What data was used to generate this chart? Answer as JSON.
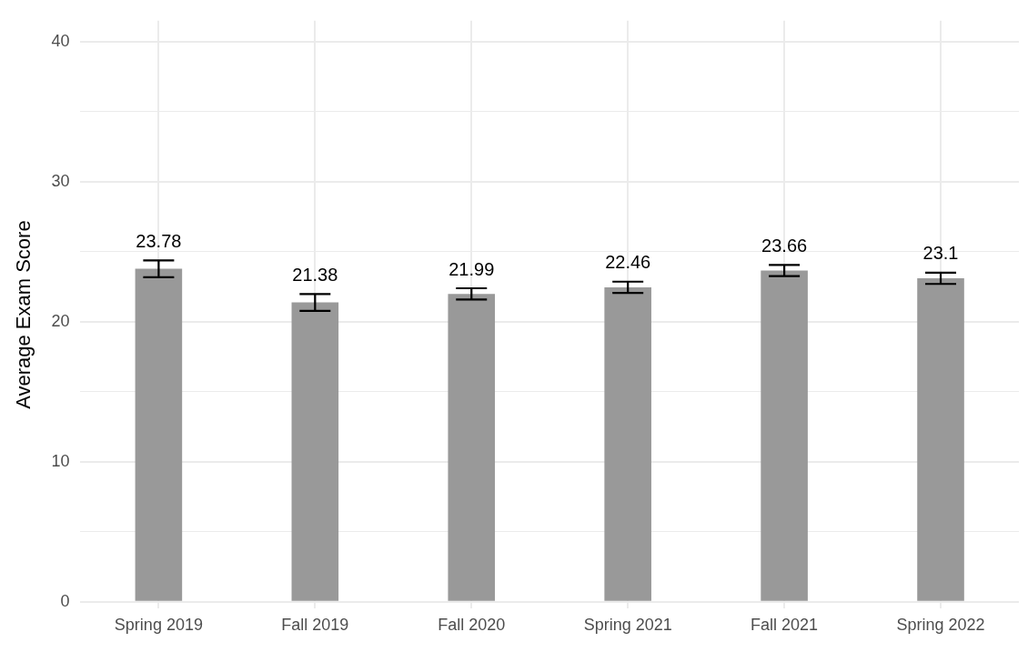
{
  "chart_data": {
    "type": "bar",
    "ylabel": "Average Exam Score",
    "categories": [
      "Spring 2019",
      "Fall 2019",
      "Fall 2020",
      "Spring 2021",
      "Fall 2021",
      "Spring 2022"
    ],
    "values": [
      23.78,
      21.38,
      21.99,
      22.46,
      23.66,
      23.1
    ],
    "errors": [
      0.6,
      0.6,
      0.4,
      0.4,
      0.4,
      0.4
    ],
    "color": "#999999",
    "ylim": [
      -0.5,
      41.5
    ],
    "yticks": [
      0,
      {
        "value": 5,
        "label": null
      },
      10,
      {
        "value": 15,
        "label": null
      },
      20,
      {
        "value": 25,
        "label": null
      },
      30,
      {
        "value": 35,
        "label": null
      },
      40
    ],
    "grid": true,
    "data_labels": true
  }
}
